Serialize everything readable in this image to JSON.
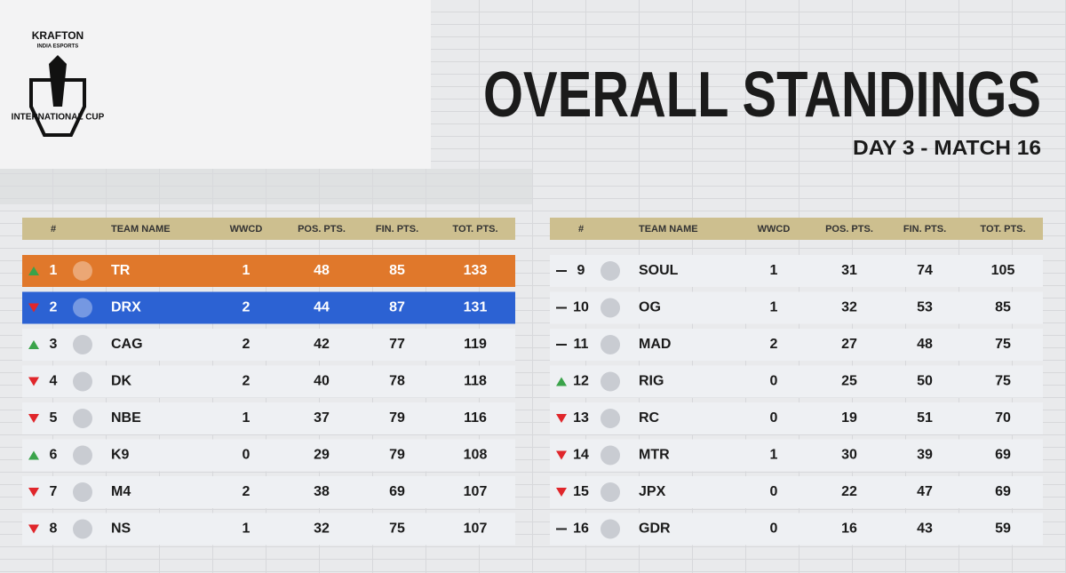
{
  "header": {
    "brand": "KRAFTON",
    "brand_sub": "INDIA ESPORTS",
    "event": "INTERNATIONAL CUP",
    "title": "OVERALL STANDINGS",
    "subtitle": "DAY 3 - MATCH 16"
  },
  "tables": [
    {
      "columns": [
        "#",
        "TEAM NAME",
        "WWCD",
        "POS. PTS.",
        "FIN. PTS.",
        "TOT. PTS."
      ],
      "rows": [
        {
          "trend": "up",
          "rank": 1,
          "team": "TR",
          "wwcd": 1,
          "pos_pts": 48,
          "fin_pts": 85,
          "tot_pts": 133,
          "highlight": "#e0782b"
        },
        {
          "trend": "down",
          "rank": 2,
          "team": "DRX",
          "wwcd": 2,
          "pos_pts": 44,
          "fin_pts": 87,
          "tot_pts": 131,
          "highlight": "#2c62d3"
        },
        {
          "trend": "up",
          "rank": 3,
          "team": "CAG",
          "wwcd": 2,
          "pos_pts": 42,
          "fin_pts": 77,
          "tot_pts": 119
        },
        {
          "trend": "down",
          "rank": 4,
          "team": "DK",
          "wwcd": 2,
          "pos_pts": 40,
          "fin_pts": 78,
          "tot_pts": 118
        },
        {
          "trend": "down",
          "rank": 5,
          "team": "NBE",
          "wwcd": 1,
          "pos_pts": 37,
          "fin_pts": 79,
          "tot_pts": 116
        },
        {
          "trend": "up",
          "rank": 6,
          "team": "K9",
          "wwcd": 0,
          "pos_pts": 29,
          "fin_pts": 79,
          "tot_pts": 108
        },
        {
          "trend": "down",
          "rank": 7,
          "team": "M4",
          "wwcd": 2,
          "pos_pts": 38,
          "fin_pts": 69,
          "tot_pts": 107
        },
        {
          "trend": "down",
          "rank": 8,
          "team": "NS",
          "wwcd": 1,
          "pos_pts": 32,
          "fin_pts": 75,
          "tot_pts": 107
        }
      ]
    },
    {
      "columns": [
        "#",
        "TEAM NAME",
        "WWCD",
        "POS. PTS.",
        "FIN. PTS.",
        "TOT. PTS."
      ],
      "rows": [
        {
          "trend": "same",
          "rank": 9,
          "team": "SOUL",
          "wwcd": 1,
          "pos_pts": 31,
          "fin_pts": 74,
          "tot_pts": 105
        },
        {
          "trend": "same",
          "rank": 10,
          "team": "OG",
          "wwcd": 1,
          "pos_pts": 32,
          "fin_pts": 53,
          "tot_pts": 85
        },
        {
          "trend": "same",
          "rank": 11,
          "team": "MAD",
          "wwcd": 2,
          "pos_pts": 27,
          "fin_pts": 48,
          "tot_pts": 75
        },
        {
          "trend": "up",
          "rank": 12,
          "team": "RIG",
          "wwcd": 0,
          "pos_pts": 25,
          "fin_pts": 50,
          "tot_pts": 75
        },
        {
          "trend": "down",
          "rank": 13,
          "team": "RC",
          "wwcd": 0,
          "pos_pts": 19,
          "fin_pts": 51,
          "tot_pts": 70
        },
        {
          "trend": "down",
          "rank": 14,
          "team": "MTR",
          "wwcd": 1,
          "pos_pts": 30,
          "fin_pts": 39,
          "tot_pts": 69
        },
        {
          "trend": "down",
          "rank": 15,
          "team": "JPX",
          "wwcd": 0,
          "pos_pts": 22,
          "fin_pts": 47,
          "tot_pts": 69
        },
        {
          "trend": "same",
          "rank": 16,
          "team": "GDR",
          "wwcd": 0,
          "pos_pts": 16,
          "fin_pts": 43,
          "tot_pts": 59
        }
      ]
    }
  ]
}
